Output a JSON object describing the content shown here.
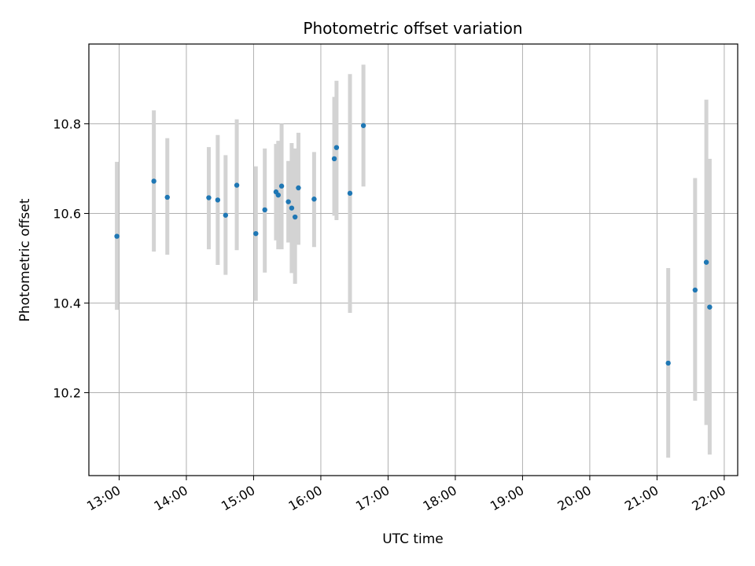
{
  "chart_data": {
    "type": "scatter",
    "title": "Photometric offset variation",
    "xlabel": "UTC time",
    "ylabel": "Photometric offset",
    "x_tick_labels": [
      "13:00",
      "14:00",
      "15:00",
      "16:00",
      "17:00",
      "18:00",
      "19:00",
      "20:00",
      "21:00",
      "22:00"
    ],
    "y_tick_labels": [
      "10.2",
      "10.4",
      "10.6",
      "10.8"
    ],
    "grid": true,
    "colors": {
      "points": "#1f77b4",
      "errorbars": "#d3d3d3",
      "grid": "#b0b0b0"
    },
    "series": [
      {
        "points": [
          {
            "x": "12:58",
            "y": 10.549,
            "lo": 10.385,
            "hi": 10.715
          },
          {
            "x": "13:31",
            "y": 10.672,
            "lo": 10.515,
            "hi": 10.83
          },
          {
            "x": "13:43",
            "y": 10.636,
            "lo": 10.508,
            "hi": 10.768
          },
          {
            "x": "14:20",
            "y": 10.635,
            "lo": 10.52,
            "hi": 10.748
          },
          {
            "x": "14:28",
            "y": 10.63,
            "lo": 10.485,
            "hi": 10.775
          },
          {
            "x": "14:35",
            "y": 10.596,
            "lo": 10.463,
            "hi": 10.73
          },
          {
            "x": "14:45",
            "y": 10.663,
            "lo": 10.518,
            "hi": 10.81
          },
          {
            "x": "15:02",
            "y": 10.555,
            "lo": 10.405,
            "hi": 10.705
          },
          {
            "x": "15:10",
            "y": 10.608,
            "lo": 10.468,
            "hi": 10.745
          },
          {
            "x": "15:20",
            "y": 10.648,
            "lo": 10.54,
            "hi": 10.755
          },
          {
            "x": "15:22",
            "y": 10.641,
            "lo": 10.52,
            "hi": 10.762
          },
          {
            "x": "15:25",
            "y": 10.661,
            "lo": 10.52,
            "hi": 10.8
          },
          {
            "x": "15:31",
            "y": 10.626,
            "lo": 10.535,
            "hi": 10.717
          },
          {
            "x": "15:34",
            "y": 10.612,
            "lo": 10.467,
            "hi": 10.757
          },
          {
            "x": "15:37",
            "y": 10.592,
            "lo": 10.443,
            "hi": 10.745
          },
          {
            "x": "15:40",
            "y": 10.657,
            "lo": 10.53,
            "hi": 10.78
          },
          {
            "x": "15:54",
            "y": 10.632,
            "lo": 10.525,
            "hi": 10.737
          },
          {
            "x": "16:12",
            "y": 10.722,
            "lo": 10.595,
            "hi": 10.86
          },
          {
            "x": "16:14",
            "y": 10.747,
            "lo": 10.585,
            "hi": 10.896
          },
          {
            "x": "16:26",
            "y": 10.645,
            "lo": 10.378,
            "hi": 10.911
          },
          {
            "x": "16:38",
            "y": 10.796,
            "lo": 10.66,
            "hi": 10.932
          },
          {
            "x": "21:10",
            "y": 10.266,
            "lo": 10.055,
            "hi": 10.478
          },
          {
            "x": "21:34",
            "y": 10.429,
            "lo": 10.182,
            "hi": 10.679
          },
          {
            "x": "21:44",
            "y": 10.491,
            "lo": 10.128,
            "hi": 10.854
          },
          {
            "x": "21:47",
            "y": 10.391,
            "lo": 10.062,
            "hi": 10.722
          }
        ]
      }
    ],
    "x_range": [
      "12:33",
      "22:12"
    ],
    "ylim": [
      10.015,
      10.978
    ]
  }
}
